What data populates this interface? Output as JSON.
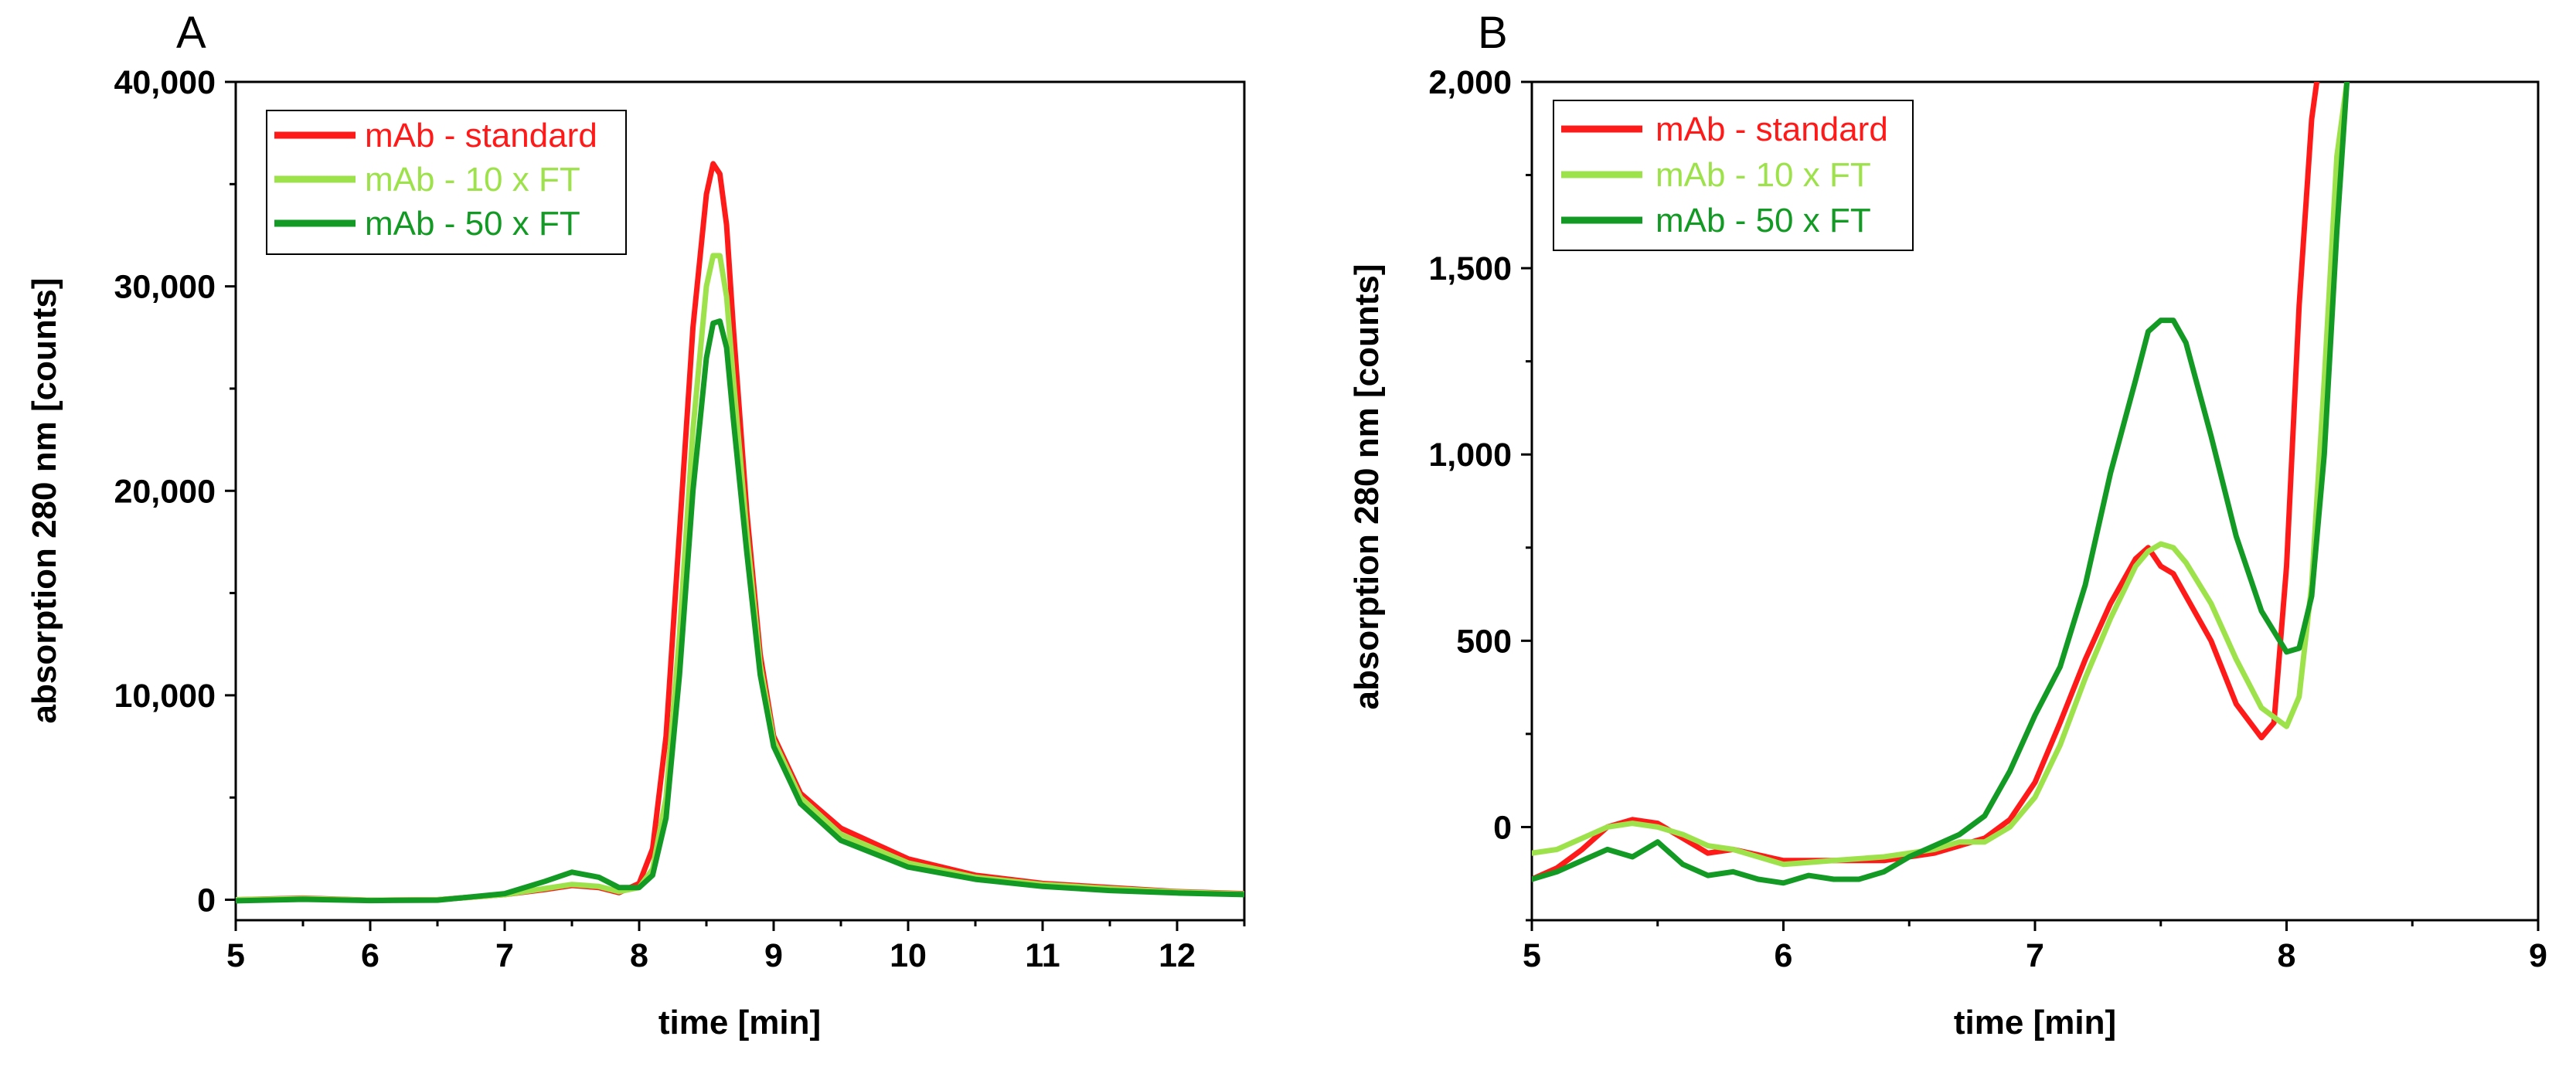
{
  "chart_data": [
    {
      "panel": "A",
      "type": "line",
      "xlabel": "time [min]",
      "ylabel": "absorption 280 nm [counts]",
      "xlim": [
        5,
        12.5
      ],
      "ylim": [
        -1000,
        40000
      ],
      "xticks": [
        5,
        6,
        7,
        8,
        9,
        10,
        11,
        12
      ],
      "yticks": [
        0,
        10000,
        20000,
        30000,
        40000
      ],
      "ytick_labels": [
        "0",
        "10,000",
        "20,000",
        "30,000",
        "40,000"
      ],
      "xtick_labels": [
        "5",
        "6",
        "7",
        "8",
        "9",
        "10",
        "11",
        "12"
      ],
      "grid": false,
      "legend_position": "top-left",
      "series": [
        {
          "name": "mAb - standard",
          "color": "#ff1a1a",
          "x": [
            5.0,
            5.5,
            6.0,
            6.5,
            7.0,
            7.3,
            7.5,
            7.7,
            7.85,
            8.0,
            8.1,
            8.2,
            8.3,
            8.4,
            8.5,
            8.55,
            8.6,
            8.65,
            8.7,
            8.8,
            8.9,
            9.0,
            9.2,
            9.5,
            10.0,
            10.5,
            11.0,
            11.5,
            12.0,
            12.5
          ],
          "y": [
            0,
            80,
            -20,
            0,
            250,
            500,
            700,
            600,
            350,
            800,
            2500,
            8000,
            18000,
            28000,
            34500,
            36000,
            35500,
            33000,
            28000,
            19000,
            12000,
            8000,
            5200,
            3500,
            2000,
            1200,
            800,
            600,
            400,
            300
          ]
        },
        {
          "name": "mAb - 10 x FT",
          "color": "#9de24a",
          "x": [
            5.0,
            5.5,
            6.0,
            6.5,
            7.0,
            7.3,
            7.5,
            7.7,
            7.85,
            8.0,
            8.1,
            8.2,
            8.3,
            8.4,
            8.5,
            8.55,
            8.6,
            8.65,
            8.7,
            8.8,
            8.9,
            9.0,
            9.2,
            9.5,
            10.0,
            10.5,
            11.0,
            11.5,
            12.0,
            12.5
          ],
          "y": [
            0,
            60,
            -20,
            0,
            250,
            550,
            750,
            650,
            400,
            600,
            1500,
            5000,
            13000,
            23000,
            30000,
            31500,
            31500,
            29500,
            25500,
            18000,
            11500,
            7800,
            5000,
            3200,
            1800,
            1100,
            750,
            550,
            380,
            280
          ]
        },
        {
          "name": "mAb - 50 x FT",
          "color": "#139a24",
          "x": [
            5.0,
            5.5,
            6.0,
            6.5,
            7.0,
            7.3,
            7.5,
            7.7,
            7.85,
            8.0,
            8.1,
            8.2,
            8.3,
            8.4,
            8.5,
            8.55,
            8.6,
            8.65,
            8.7,
            8.8,
            8.9,
            9.0,
            9.2,
            9.5,
            10.0,
            10.5,
            11.0,
            11.5,
            12.0,
            12.5
          ],
          "y": [
            -50,
            20,
            -40,
            -20,
            300,
            900,
            1350,
            1100,
            600,
            600,
            1200,
            4000,
            11000,
            20000,
            26500,
            28200,
            28300,
            27000,
            23500,
            17000,
            11000,
            7500,
            4700,
            2900,
            1600,
            1000,
            650,
            450,
            330,
            250
          ]
        }
      ]
    },
    {
      "panel": "B",
      "type": "line",
      "xlabel": "time [min]",
      "ylabel": "absorption 280 nm [counts]",
      "xlim": [
        5,
        9
      ],
      "ylim": [
        -250,
        2000
      ],
      "xticks": [
        5,
        6,
        7,
        8,
        9
      ],
      "yticks": [
        0,
        500,
        1000,
        1500,
        2000
      ],
      "ytick_labels": [
        "0",
        "500",
        "1,000",
        "1,500",
        "2,000"
      ],
      "xtick_labels": [
        "5",
        "6",
        "7",
        "8",
        "9"
      ],
      "grid": false,
      "legend_position": "top-left",
      "series": [
        {
          "name": "mAb - standard",
          "color": "#ff1a1a",
          "x": [
            5.0,
            5.1,
            5.2,
            5.3,
            5.4,
            5.5,
            5.6,
            5.7,
            5.8,
            6.0,
            6.2,
            6.4,
            6.6,
            6.7,
            6.8,
            6.9,
            7.0,
            7.1,
            7.2,
            7.3,
            7.4,
            7.45,
            7.5,
            7.55,
            7.6,
            7.7,
            7.8,
            7.9,
            7.95,
            8.0,
            8.05,
            8.1,
            8.12
          ],
          "y": [
            -140,
            -110,
            -60,
            0,
            20,
            10,
            -30,
            -70,
            -60,
            -90,
            -90,
            -90,
            -70,
            -50,
            -30,
            20,
            120,
            280,
            450,
            600,
            720,
            750,
            700,
            680,
            620,
            500,
            330,
            240,
            280,
            700,
            1400,
            1900,
            2000
          ]
        },
        {
          "name": "mAb - 10 x FT",
          "color": "#9de24a",
          "x": [
            5.0,
            5.1,
            5.2,
            5.3,
            5.4,
            5.5,
            5.6,
            5.7,
            5.8,
            6.0,
            6.2,
            6.4,
            6.6,
            6.7,
            6.8,
            6.9,
            7.0,
            7.1,
            7.2,
            7.3,
            7.4,
            7.45,
            7.5,
            7.55,
            7.6,
            7.7,
            7.8,
            7.9,
            8.0,
            8.05,
            8.1,
            8.15,
            8.2,
            8.24
          ],
          "y": [
            -70,
            -60,
            -30,
            0,
            10,
            0,
            -20,
            -50,
            -60,
            -100,
            -90,
            -80,
            -60,
            -40,
            -40,
            0,
            80,
            220,
            400,
            560,
            700,
            740,
            760,
            750,
            710,
            600,
            450,
            320,
            270,
            350,
            650,
            1200,
            1800,
            2000
          ]
        },
        {
          "name": "mAb - 50 x FT",
          "color": "#139a24",
          "x": [
            5.0,
            5.1,
            5.2,
            5.3,
            5.4,
            5.5,
            5.6,
            5.7,
            5.8,
            5.9,
            6.0,
            6.1,
            6.2,
            6.3,
            6.4,
            6.5,
            6.6,
            6.7,
            6.8,
            6.9,
            7.0,
            7.1,
            7.2,
            7.3,
            7.4,
            7.45,
            7.5,
            7.55,
            7.6,
            7.7,
            7.8,
            7.9,
            8.0,
            8.05,
            8.1,
            8.15,
            8.2,
            8.24
          ],
          "y": [
            -140,
            -120,
            -90,
            -60,
            -80,
            -40,
            -100,
            -130,
            -120,
            -140,
            -150,
            -130,
            -140,
            -140,
            -120,
            -80,
            -50,
            -20,
            30,
            150,
            300,
            430,
            650,
            950,
            1200,
            1330,
            1360,
            1360,
            1300,
            1050,
            780,
            580,
            470,
            480,
            620,
            1000,
            1600,
            2000
          ]
        }
      ]
    }
  ]
}
